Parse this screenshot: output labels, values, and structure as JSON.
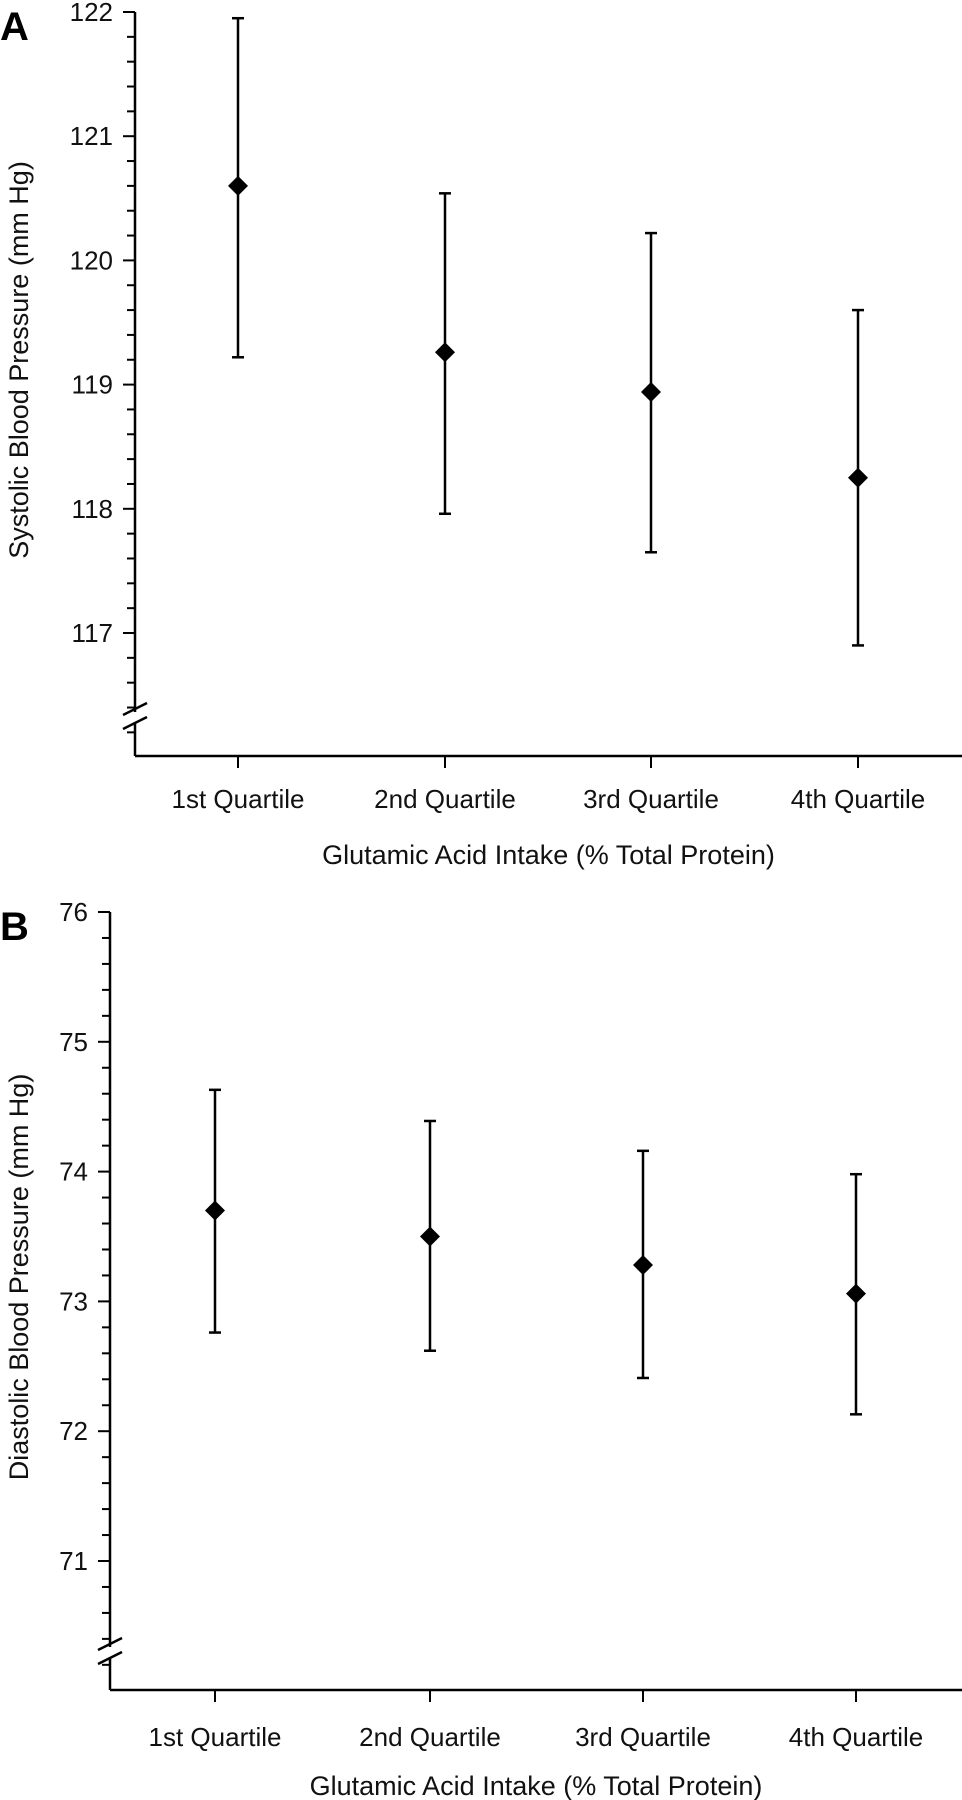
{
  "chart_data": [
    {
      "type": "scatter",
      "panel_label": "A",
      "categories": [
        "1st Quartile",
        "2nd Quartile",
        "3rd Quartile",
        "4th Quartile"
      ],
      "values": [
        120.6,
        119.26,
        118.94,
        118.25
      ],
      "error_low": [
        119.22,
        117.96,
        117.65,
        116.9
      ],
      "error_high": [
        121.95,
        120.54,
        120.22,
        119.6
      ],
      "xlabel": "Glutamic Acid Intake (% Total Protein)",
      "ylabel": "Systolic Blood Pressure (mm Hg)",
      "ylim": [
        116,
        122
      ],
      "yticks": [
        117,
        118,
        119,
        120,
        121,
        122
      ],
      "axis_break": true,
      "grid": false,
      "marker": "diamond",
      "color": "#000000"
    },
    {
      "type": "scatter",
      "panel_label": "B",
      "categories": [
        "1st Quartile",
        "2nd Quartile",
        "3rd Quartile",
        "4th Quartile"
      ],
      "values": [
        73.7,
        73.5,
        73.28,
        73.06
      ],
      "error_low": [
        72.76,
        72.62,
        72.41,
        72.13
      ],
      "error_high": [
        74.63,
        74.39,
        74.16,
        73.98
      ],
      "xlabel": "Glutamic Acid Intake (% Total Protein)",
      "ylabel": "Diastolic Blood Pressure (mm Hg)",
      "ylim": [
        70,
        76
      ],
      "yticks": [
        71,
        72,
        73,
        74,
        75,
        76
      ],
      "axis_break": true,
      "grid": false,
      "marker": "diamond",
      "color": "#000000"
    }
  ]
}
